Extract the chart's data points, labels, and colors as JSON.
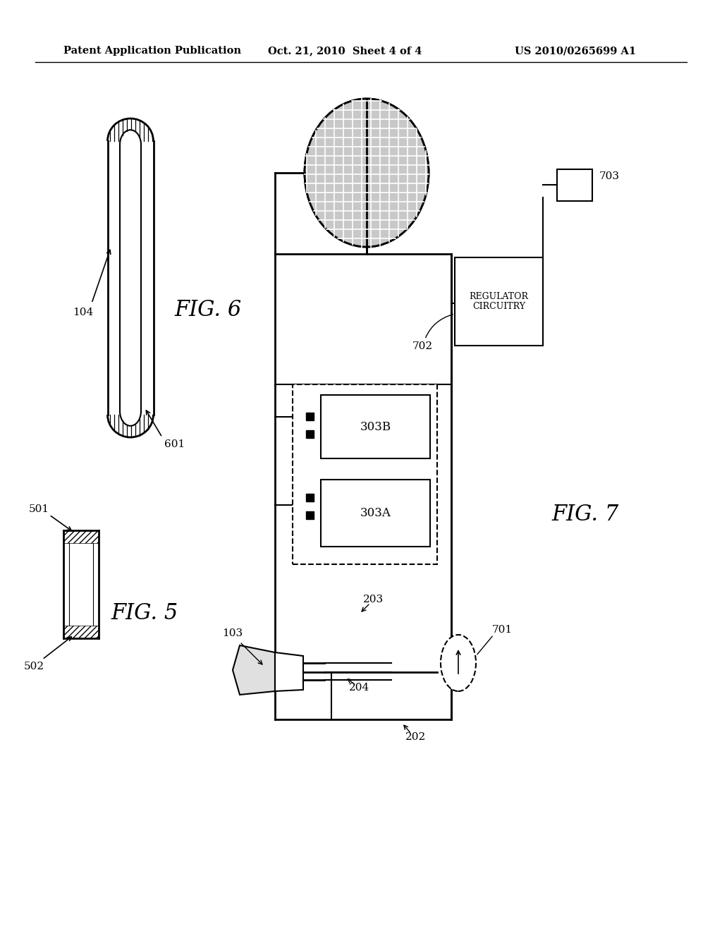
{
  "bg_color": "#ffffff",
  "header_text": "Patent Application Publication",
  "header_date": "Oct. 21, 2010  Sheet 4 of 4",
  "header_patent": "US 2010/0265699 A1",
  "fig5_label": "FIG. 5",
  "fig6_label": "FIG. 6",
  "fig7_label": "FIG. 7",
  "line_color": "#000000",
  "line_width": 1.5,
  "hatch_color": "#000000"
}
